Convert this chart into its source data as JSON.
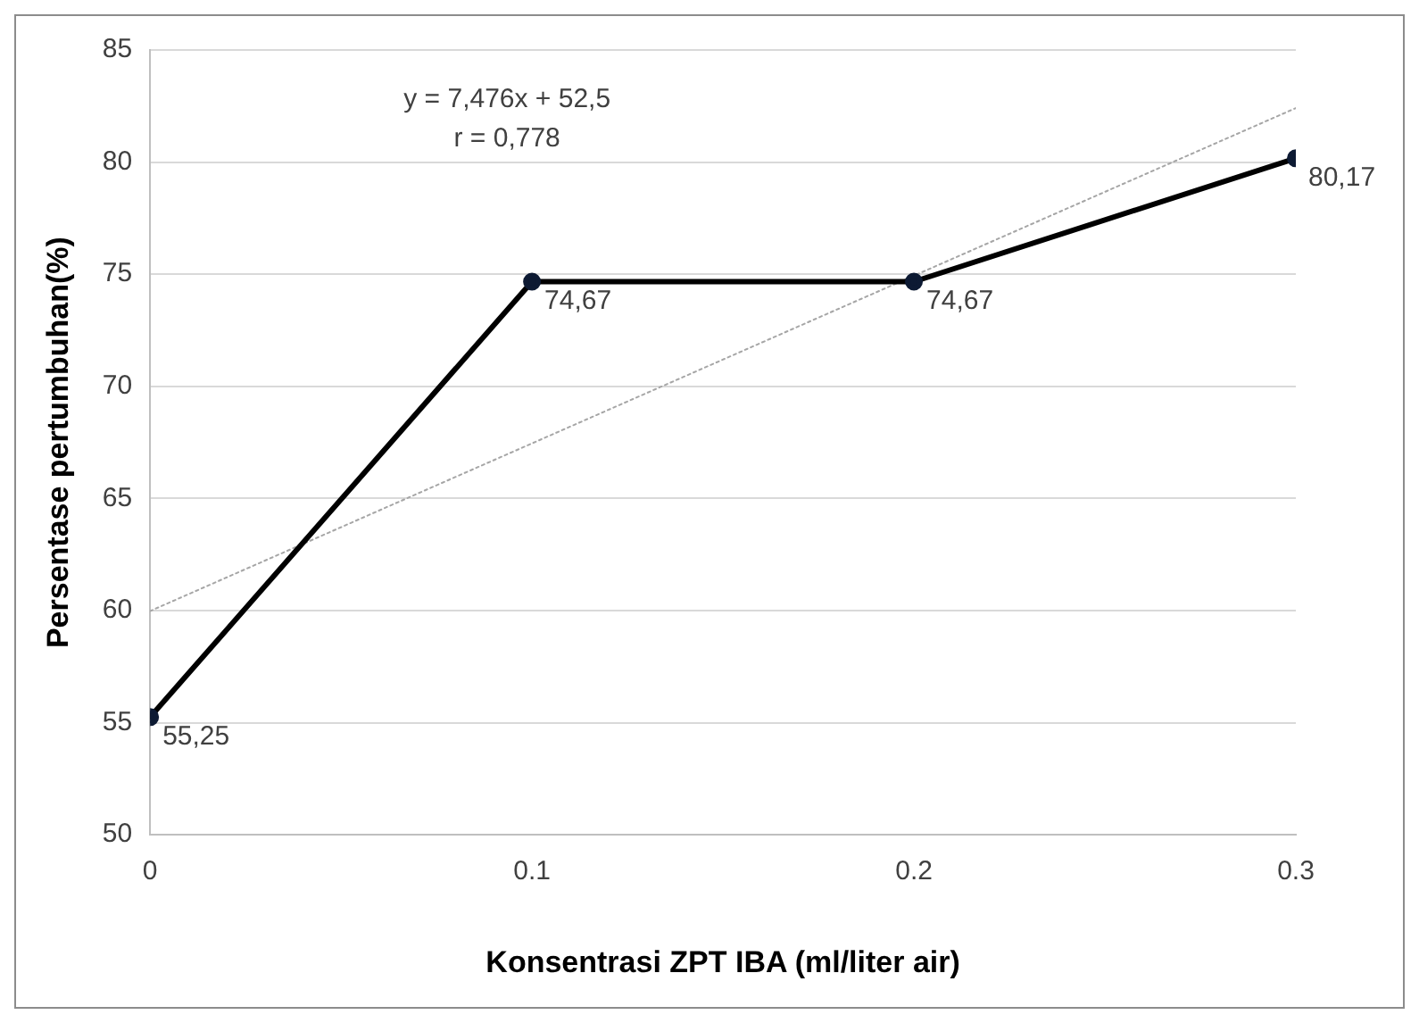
{
  "chart_data": {
    "type": "line",
    "xlabel": "Konsentrasi ZPT IBA (ml/liter air)",
    "ylabel": "Persentase pertumbuhan(%)",
    "x": [
      0,
      0.1,
      0.2,
      0.3
    ],
    "series": [
      {
        "type": "line",
        "color": "#000000",
        "values": [
          55.25,
          74.67,
          74.67,
          80.17
        ],
        "value_labels": [
          "55,25",
          "74,67",
          "74,67",
          "80,17"
        ],
        "marker": "circle",
        "line_style": "solid"
      },
      {
        "type": "line",
        "color": "#a6a6a6",
        "x": [
          0,
          0.3
        ],
        "values": [
          59.98,
          82.41
        ],
        "marker": "none",
        "line_style": "dotted"
      }
    ],
    "annotations": [
      "y = 7,476x + 52,5",
      "r = 0,778"
    ],
    "xlim": [
      0,
      0.3
    ],
    "xticks": [
      0,
      0.1,
      0.2,
      0.3
    ],
    "ylim": [
      50,
      85
    ],
    "yticks": [
      50,
      55,
      60,
      65,
      70,
      75,
      80,
      85
    ],
    "grid": "y",
    "legend": false
  }
}
